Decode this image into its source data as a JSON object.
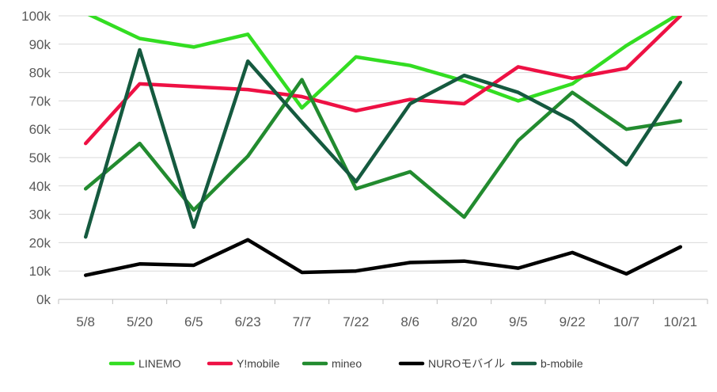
{
  "chart_data": {
    "type": "line",
    "title": "",
    "xlabel": "",
    "ylabel": "",
    "ylim": [
      0,
      100000
    ],
    "y_ticks": [
      {
        "value": 0,
        "label": "0k"
      },
      {
        "value": 10000,
        "label": "10k"
      },
      {
        "value": 20000,
        "label": "20k"
      },
      {
        "value": 30000,
        "label": "30k"
      },
      {
        "value": 40000,
        "label": "40k"
      },
      {
        "value": 50000,
        "label": "50k"
      },
      {
        "value": 60000,
        "label": "60k"
      },
      {
        "value": 70000,
        "label": "70k"
      },
      {
        "value": 80000,
        "label": "80k"
      },
      {
        "value": 90000,
        "label": "90k"
      },
      {
        "value": 100000,
        "label": "100k"
      }
    ],
    "categories": [
      "5/8",
      "5/20",
      "6/5",
      "6/23",
      "7/7",
      "7/22",
      "8/6",
      "8/20",
      "9/5",
      "9/22",
      "10/7",
      "10/21"
    ],
    "grid": true,
    "legend_position": "bottom",
    "series": [
      {
        "name": "LINEMO",
        "color": "#33dd22",
        "values": [
          101000,
          92000,
          89000,
          93500,
          67500,
          85500,
          82500,
          77000,
          70000,
          76000,
          89500,
          101000
        ]
      },
      {
        "name": "Y!mobile",
        "color": "#ee1144",
        "values": [
          55000,
          76000,
          75000,
          74000,
          71500,
          66500,
          70500,
          69000,
          82000,
          78000,
          81500,
          100000
        ]
      },
      {
        "name": "mineo",
        "color": "#228b2f",
        "values": [
          39000,
          55000,
          31500,
          50500,
          77500,
          39000,
          45000,
          29000,
          56000,
          73000,
          60000,
          63000
        ]
      },
      {
        "name": "NUROモバイル",
        "color": "#000000",
        "values": [
          8500,
          12500,
          12000,
          21000,
          9500,
          10000,
          13000,
          13500,
          11000,
          16500,
          9000,
          18500
        ]
      },
      {
        "name": "b-mobile",
        "color": "#155a3f",
        "values": [
          22000,
          88000,
          25500,
          84000,
          62500,
          41500,
          69000,
          79000,
          73000,
          63000,
          47500,
          76500
        ]
      }
    ]
  }
}
